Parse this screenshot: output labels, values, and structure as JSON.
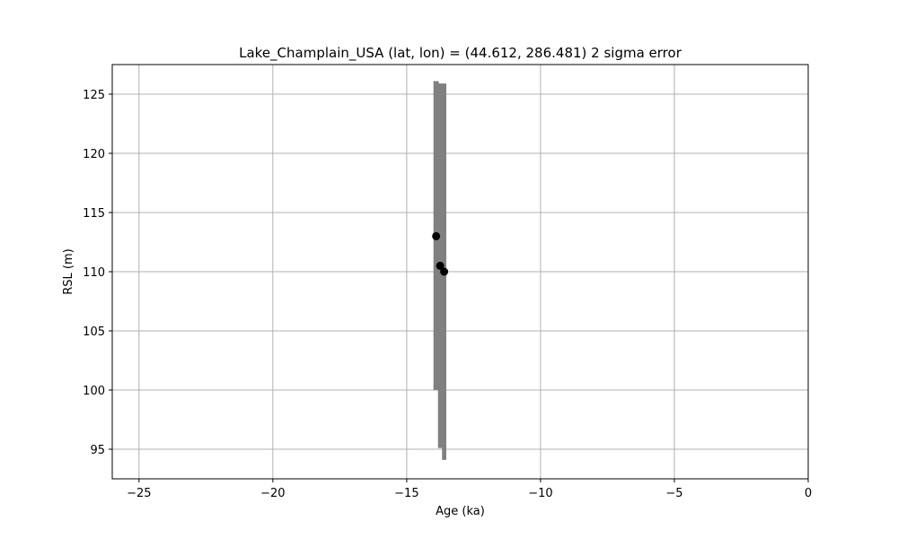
{
  "chart_data": {
    "type": "scatter",
    "title": "Lake_Champlain_USA (lat, lon) = (44.612, 286.481)  2 sigma error",
    "xlabel": "Age (ka)",
    "ylabel": "RSL (m)",
    "xlim": [
      -26,
      0
    ],
    "ylim": [
      92.5,
      127.5
    ],
    "xticks": [
      -25,
      -20,
      -15,
      -10,
      -5,
      0
    ],
    "xtick_labels": [
      "−25",
      "−20",
      "−15",
      "−10",
      "−5",
      "0"
    ],
    "yticks": [
      95,
      100,
      105,
      110,
      115,
      120,
      125
    ],
    "ytick_labels": [
      "95",
      "100",
      "105",
      "110",
      "115",
      "120",
      "125"
    ],
    "grid": true,
    "colors": {
      "error_bar": "#808080",
      "point": "#000000",
      "grid": "#b0b0b0"
    },
    "points": [
      {
        "age": -13.9,
        "rsl": 113.0,
        "age_err": 0.1,
        "rsl_low": 100.0,
        "rsl_high": 126.1
      },
      {
        "age": -13.75,
        "rsl": 110.5,
        "age_err": 0.08,
        "rsl_low": 95.1,
        "rsl_high": 125.9
      },
      {
        "age": -13.6,
        "rsl": 110.0,
        "age_err": 0.08,
        "rsl_low": 94.1,
        "rsl_high": 125.9
      }
    ]
  }
}
